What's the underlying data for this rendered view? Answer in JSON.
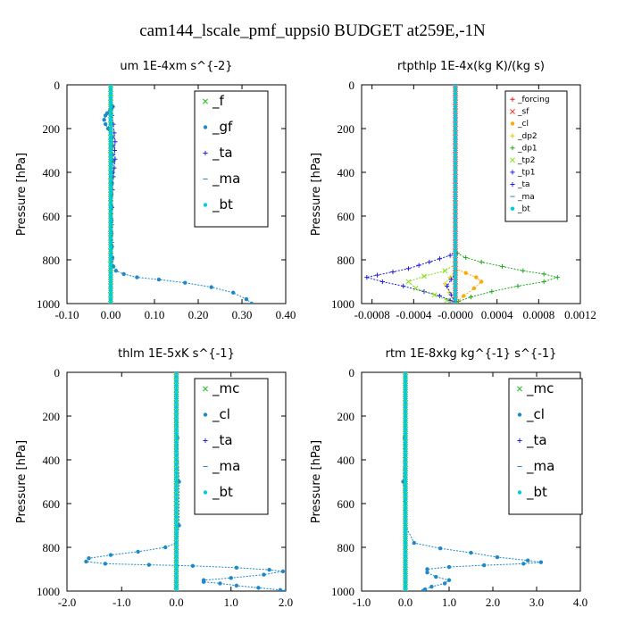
{
  "figure_title": "cam144_lscale_pmf_uppsi0  BUDGET at259E,-1N",
  "colors": {
    "_f": "#22bb22",
    "_gf": "#1e88c8",
    "_ta": "#2222dd",
    "_ma": "#1e88c8",
    "_bt": "#00ccdd",
    "_forcing": "#dd2222",
    "_sf": "#ff3322",
    "_cl": "#ffaa00",
    "_dp2": "#ddcc00",
    "_dp1": "#22aa22",
    "_tp2": "#88dd22",
    "_tp1": "#2222ee",
    "_mc": "#22bb22",
    "_cl2": "#1e88c8"
  },
  "chart_data": [
    {
      "type": "line",
      "title": "um   1E-4xm  s^{-2}",
      "ylabel": "Pressure [hPa]",
      "xlim": [
        -0.1,
        0.4
      ],
      "ylim": [
        1000,
        0
      ],
      "xticks": [
        "-0.10",
        "0.00",
        "0.10",
        "0.20",
        "0.30",
        "0.40"
      ],
      "yticks": [
        "0",
        "200",
        "400",
        "600",
        "800",
        "1000"
      ],
      "legend": [
        "_f",
        "_gf",
        "_ta",
        "_ma",
        "_bt"
      ],
      "series": [
        {
          "name": "_f",
          "x": [
            0.0,
            0.0
          ],
          "y": [
            0,
            1000
          ]
        },
        {
          "name": "_gf",
          "x": [
            0.005,
            0.002,
            -0.002,
            -0.008,
            -0.012,
            -0.015,
            -0.012,
            -0.006,
            0.004,
            0.005,
            0.004,
            0.006,
            0.005,
            0.003,
            0.002,
            0.002,
            0.002,
            0.002,
            0.003,
            0.004,
            0.006,
            0.012,
            0.03,
            0.06,
            0.11,
            0.17,
            0.23,
            0.28,
            0.31,
            0.322
          ],
          "y": [
            100,
            110,
            120,
            130,
            140,
            160,
            180,
            200,
            240,
            280,
            320,
            350,
            400,
            450,
            500,
            560,
            620,
            680,
            740,
            790,
            830,
            850,
            865,
            880,
            890,
            905,
            925,
            950,
            980,
            1000
          ]
        },
        {
          "name": "_ta",
          "x": [
            0.002,
            0.003,
            0.006,
            0.008,
            0.01,
            0.009,
            0.01,
            0.008,
            0.006,
            0.004,
            0.003,
            0.002,
            0.002,
            0.002
          ],
          "y": [
            100,
            140,
            180,
            220,
            260,
            300,
            340,
            380,
            420,
            480,
            560,
            640,
            720,
            800
          ]
        },
        {
          "name": "_ma",
          "x": [
            0.0,
            0.0
          ],
          "y": [
            0,
            1000
          ]
        },
        {
          "name": "_bt",
          "x": [
            0.0,
            0.0
          ],
          "y": [
            0,
            1000
          ]
        }
      ]
    },
    {
      "type": "line",
      "title": "rtpthlp   1E-4x(kg K)/(kg s)",
      "ylabel": "Pressure [hPa]",
      "xlim": [
        -0.0009,
        0.0012
      ],
      "ylim": [
        1000,
        0
      ],
      "xticks": [
        "-0.0008",
        "-0.0004",
        "-0.0000",
        "0.0004",
        "0.0008",
        "0.0012"
      ],
      "yticks": [
        "0",
        "200",
        "400",
        "600",
        "800",
        "1000"
      ],
      "legend": [
        "_forcing",
        "_sf",
        "_cl",
        "_dp2",
        "_dp1",
        "_tp2",
        "_tp1",
        "_ta",
        "_ma",
        "_bt"
      ],
      "series": [
        {
          "name": "_forcing",
          "x": [
            0.0,
            0.0
          ],
          "y": [
            0,
            1000
          ]
        },
        {
          "name": "_sf",
          "x": [
            0.0,
            0.0
          ],
          "y": [
            0,
            1000
          ]
        },
        {
          "name": "_dp1",
          "x": [
            0.0,
            2e-05,
            0.0001,
            0.00025,
            0.00045,
            0.00065,
            0.00085,
            0.00098,
            0.00085,
            0.0006,
            0.00035,
            0.00015,
            3e-05,
            0.0
          ],
          "y": [
            740,
            770,
            790,
            810,
            830,
            850,
            865,
            880,
            900,
            920,
            945,
            970,
            990,
            1000
          ]
        },
        {
          "name": "_ta",
          "x": [
            0.0,
            -5e-05,
            -0.00015,
            -0.00025,
            -0.00035,
            -0.00045,
            -0.0006,
            -0.00075,
            -0.00085,
            -0.0007,
            -0.0005,
            -0.0003,
            -0.00015,
            -5e-05,
            0.0
          ],
          "y": [
            760,
            780,
            795,
            810,
            825,
            840,
            855,
            870,
            880,
            900,
            920,
            945,
            965,
            985,
            1000
          ]
        },
        {
          "name": "_tp2",
          "x": [
            0.0,
            -0.0001,
            -0.0003,
            -0.00045,
            -0.00038,
            -0.0002,
            -8e-05,
            0.0
          ],
          "y": [
            820,
            850,
            875,
            900,
            930,
            960,
            985,
            1000
          ]
        },
        {
          "name": "_cl",
          "x": [
            0.0,
            0.0001,
            0.0002,
            0.00025,
            0.00018,
            8e-05,
            0.0
          ],
          "y": [
            840,
            860,
            880,
            900,
            930,
            965,
            1000
          ]
        },
        {
          "name": "_dp2",
          "x": [
            0.0,
            -5e-05,
            -0.0001,
            -6e-05,
            0.0
          ],
          "y": [
            850,
            880,
            910,
            950,
            1000
          ]
        },
        {
          "name": "_tp1",
          "x": [
            0.0,
            -4e-05,
            -8e-05,
            -4e-05,
            0.0
          ],
          "y": [
            860,
            890,
            920,
            960,
            1000
          ]
        },
        {
          "name": "_ma",
          "x": [
            0.0,
            0.0
          ],
          "y": [
            0,
            1000
          ]
        },
        {
          "name": "_bt",
          "x": [
            0.0,
            0.0
          ],
          "y": [
            0,
            1000
          ]
        }
      ]
    },
    {
      "type": "line",
      "title": "thlm   1E-5xK  s^{-1}",
      "ylabel": "Pressure [hPa]",
      "xlim": [
        -2.0,
        2.0
      ],
      "ylim": [
        1000,
        0
      ],
      "xticks": [
        "-2.0",
        "-1.0",
        "0.0",
        "1.0",
        "2.0"
      ],
      "yticks": [
        "0",
        "200",
        "400",
        "600",
        "800",
        "1000"
      ],
      "legend": [
        "_mc",
        "_cl",
        "_ta",
        "_ma",
        "_bt"
      ],
      "series": [
        {
          "name": "_mc",
          "x": [
            0.0,
            0.0
          ],
          "y": [
            0,
            1000
          ]
        },
        {
          "name": "_cl",
          "x": [
            0.0,
            0.0,
            0.02,
            0.05,
            0.05,
            0.0,
            -0.2,
            -0.7,
            -1.2,
            -1.6,
            -1.65,
            -1.3,
            -0.5,
            0.3,
            1.1,
            1.7,
            1.95,
            1.6,
            1.0,
            0.5,
            0.5,
            0.8,
            1.1,
            1.5,
            1.9,
            2.0
          ],
          "y": [
            0,
            100,
            300,
            500,
            700,
            780,
            800,
            820,
            835,
            850,
            865,
            875,
            880,
            885,
            893,
            903,
            910,
            925,
            940,
            950,
            958,
            965,
            975,
            985,
            995,
            1000
          ]
        },
        {
          "name": "_ta",
          "x": [
            0.0,
            0.0
          ],
          "y": [
            0,
            1000
          ]
        },
        {
          "name": "_ma",
          "x": [
            0.0,
            0.0
          ],
          "y": [
            0,
            1000
          ]
        },
        {
          "name": "_bt",
          "x": [
            0.0,
            0.0
          ],
          "y": [
            0,
            1000
          ]
        }
      ]
    },
    {
      "type": "line",
      "title": "rtm   1E-8xkg  kg^{-1} s^{-1}",
      "ylabel": "Pressure [hPa]",
      "xlim": [
        -1.0,
        4.0
      ],
      "ylim": [
        1000,
        0
      ],
      "xticks": [
        "-1.0",
        "0.0",
        "1.0",
        "2.0",
        "3.0",
        "4.0"
      ],
      "yticks": [
        "0",
        "200",
        "400",
        "600",
        "800",
        "1000"
      ],
      "legend": [
        "_mc",
        "_cl",
        "_ta",
        "_ma",
        "_bt"
      ],
      "series": [
        {
          "name": "_mc",
          "x": [
            0.0,
            0.0
          ],
          "y": [
            0,
            1000
          ]
        },
        {
          "name": "_cl",
          "x": [
            0.0,
            0.0,
            -0.02,
            -0.05,
            0.0,
            0.2,
            0.8,
            1.5,
            2.1,
            2.8,
            3.1,
            2.7,
            1.8,
            1.0,
            0.5,
            0.5,
            0.7,
            1.0,
            0.9,
            0.6,
            0.45,
            0.4
          ],
          "y": [
            0,
            100,
            300,
            500,
            700,
            780,
            805,
            825,
            845,
            860,
            868,
            875,
            882,
            890,
            900,
            915,
            935,
            950,
            965,
            980,
            992,
            1000
          ]
        },
        {
          "name": "_ta",
          "x": [
            0.0,
            0.0
          ],
          "y": [
            0,
            1000
          ]
        },
        {
          "name": "_ma",
          "x": [
            0.0,
            0.0
          ],
          "y": [
            0,
            1000
          ]
        },
        {
          "name": "_bt",
          "x": [
            0.0,
            0.0
          ],
          "y": [
            0,
            1000
          ]
        }
      ]
    }
  ]
}
